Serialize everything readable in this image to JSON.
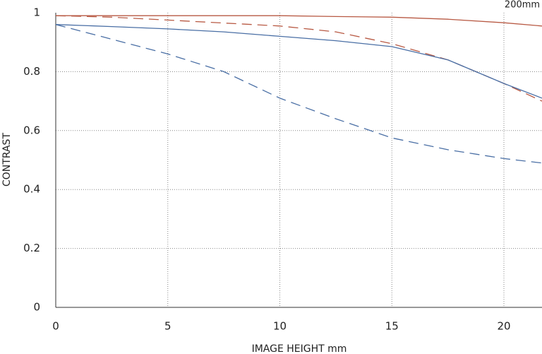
{
  "chart_data": {
    "type": "line",
    "subtitle": "200mm",
    "x_label": "IMAGE HEIGHT  mm",
    "y_label": "CONTRAST",
    "x": [
      0,
      2.5,
      5,
      7.5,
      10,
      12.5,
      15,
      17.5,
      20,
      21.7
    ],
    "series": [
      {
        "color": "#b85a44",
        "style": "solid",
        "values": [
          0.99,
          0.99,
          0.99,
          0.99,
          0.99,
          0.987,
          0.985,
          0.978,
          0.966,
          0.955
        ]
      },
      {
        "color": "#b85a44",
        "style": "dashed",
        "values": [
          0.99,
          0.985,
          0.975,
          0.965,
          0.955,
          0.935,
          0.895,
          0.84,
          0.76,
          0.7
        ]
      },
      {
        "color": "#4a6fa5",
        "style": "solid",
        "values": [
          0.96,
          0.953,
          0.945,
          0.935,
          0.92,
          0.905,
          0.885,
          0.84,
          0.76,
          0.71
        ]
      },
      {
        "color": "#4a6fa5",
        "style": "dashed",
        "values": [
          0.96,
          0.91,
          0.86,
          0.8,
          0.71,
          0.64,
          0.575,
          0.535,
          0.505,
          0.49
        ]
      }
    ],
    "xlim": [
      0,
      21.7
    ],
    "xticks": [
      0,
      5,
      10,
      15,
      20
    ],
    "ylim": [
      0,
      1
    ],
    "yticks": [
      0,
      0.2,
      0.4,
      0.6,
      0.8,
      1
    ],
    "grid": true
  }
}
